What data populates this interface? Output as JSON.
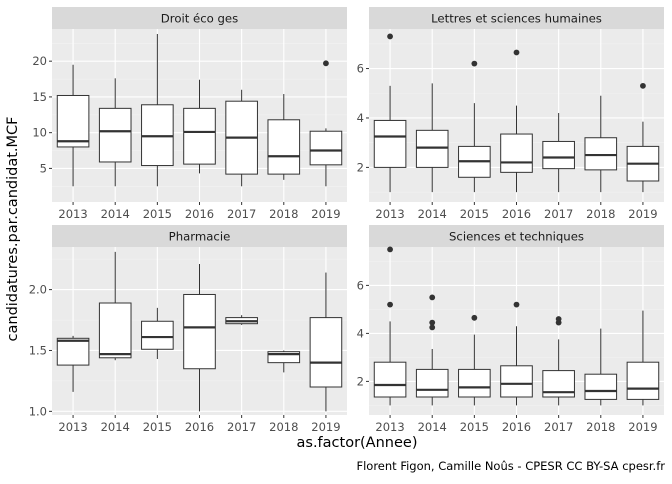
{
  "figure": {
    "ylabel": "candidatures.par.candidat.MCF",
    "xlabel": "as.factor(Annee)",
    "caption": "Florent Figon, Camille Noûs - CPESR CC BY-SA cpesr.fr"
  },
  "colors": {
    "panel_bg": "#ebebeb",
    "strip_bg": "#d9d9d9",
    "grid_major": "#ffffff",
    "grid_minor": "#f2f2f2",
    "box_fill": "#ffffff",
    "box_line": "#333333",
    "tick_text": "#4d4d4d",
    "strip_text": "#1a1a1a"
  },
  "chart_data": [
    {
      "type": "boxplot",
      "facet": "Droit éco ges",
      "categories": [
        "2013",
        "2014",
        "2015",
        "2016",
        "2017",
        "2018",
        "2019"
      ],
      "yticks": [
        5,
        10,
        15,
        20
      ],
      "ylim": [
        0.3,
        24.5
      ],
      "boxes": [
        {
          "min": 2.5,
          "q1": 8.0,
          "median": 8.8,
          "q3": 15.2,
          "max": 19.5,
          "outliers": []
        },
        {
          "min": 2.5,
          "q1": 5.9,
          "median": 10.2,
          "q3": 13.4,
          "max": 17.6,
          "outliers": []
        },
        {
          "min": 2.5,
          "q1": 5.4,
          "median": 9.5,
          "q3": 13.9,
          "max": 23.8,
          "outliers": []
        },
        {
          "min": 4.3,
          "q1": 5.6,
          "median": 10.1,
          "q3": 13.4,
          "max": 17.4,
          "outliers": []
        },
        {
          "min": 2.5,
          "q1": 4.2,
          "median": 9.3,
          "q3": 14.4,
          "max": 16.0,
          "outliers": []
        },
        {
          "min": 3.4,
          "q1": 4.2,
          "median": 6.7,
          "q3": 11.8,
          "max": 15.4,
          "outliers": []
        },
        {
          "min": 2.5,
          "q1": 5.5,
          "median": 7.5,
          "q3": 10.2,
          "max": 10.6,
          "outliers": [
            19.7
          ]
        }
      ]
    },
    {
      "type": "boxplot",
      "facet": "Lettres et sciences humaines",
      "categories": [
        "2013",
        "2014",
        "2015",
        "2016",
        "2017",
        "2018",
        "2019"
      ],
      "yticks": [
        2,
        4,
        6
      ],
      "ylim": [
        0.6,
        7.6
      ],
      "boxes": [
        {
          "min": 1.0,
          "q1": 2.0,
          "median": 3.25,
          "q3": 3.9,
          "max": 5.3,
          "outliers": [
            7.3
          ]
        },
        {
          "min": 1.0,
          "q1": 2.0,
          "median": 2.8,
          "q3": 3.5,
          "max": 5.4,
          "outliers": []
        },
        {
          "min": 1.0,
          "q1": 1.6,
          "median": 2.25,
          "q3": 2.85,
          "max": 4.6,
          "outliers": [
            6.2
          ]
        },
        {
          "min": 1.0,
          "q1": 1.8,
          "median": 2.2,
          "q3": 3.35,
          "max": 4.5,
          "outliers": [
            6.65
          ]
        },
        {
          "min": 1.0,
          "q1": 1.95,
          "median": 2.4,
          "q3": 3.05,
          "max": 4.2,
          "outliers": []
        },
        {
          "min": 1.0,
          "q1": 1.9,
          "median": 2.5,
          "q3": 3.2,
          "max": 4.9,
          "outliers": []
        },
        {
          "min": 1.0,
          "q1": 1.45,
          "median": 2.15,
          "q3": 2.85,
          "max": 3.85,
          "outliers": [
            5.3
          ]
        }
      ]
    },
    {
      "type": "boxplot",
      "facet": "Pharmacie",
      "categories": [
        "2013",
        "2014",
        "2015",
        "2016",
        "2017",
        "2018",
        "2019"
      ],
      "yticks": [
        1.0,
        1.5,
        2.0
      ],
      "ylim": [
        0.97,
        2.35
      ],
      "boxes": [
        {
          "min": 1.16,
          "q1": 1.38,
          "median": 1.58,
          "q3": 1.6,
          "max": 1.62,
          "outliers": []
        },
        {
          "min": 1.42,
          "q1": 1.44,
          "median": 1.47,
          "q3": 1.89,
          "max": 2.31,
          "outliers": []
        },
        {
          "min": 1.43,
          "q1": 1.51,
          "median": 1.61,
          "q3": 1.74,
          "max": 1.85,
          "outliers": []
        },
        {
          "min": 1.0,
          "q1": 1.35,
          "median": 1.69,
          "q3": 1.96,
          "max": 2.21,
          "outliers": []
        },
        {
          "min": 1.71,
          "q1": 1.72,
          "median": 1.74,
          "q3": 1.77,
          "max": 1.79,
          "outliers": []
        },
        {
          "min": 1.32,
          "q1": 1.4,
          "median": 1.47,
          "q3": 1.49,
          "max": 1.5,
          "outliers": []
        },
        {
          "min": 1.0,
          "q1": 1.2,
          "median": 1.4,
          "q3": 1.77,
          "max": 2.14,
          "outliers": []
        }
      ]
    },
    {
      "type": "boxplot",
      "facet": "Sciences et techniques",
      "categories": [
        "2013",
        "2014",
        "2015",
        "2016",
        "2017",
        "2018",
        "2019"
      ],
      "yticks": [
        2,
        4,
        6
      ],
      "ylim": [
        0.6,
        7.6
      ],
      "boxes": [
        {
          "min": 1.0,
          "q1": 1.35,
          "median": 1.85,
          "q3": 2.8,
          "max": 4.5,
          "outliers": [
            5.2,
            7.5
          ]
        },
        {
          "min": 1.0,
          "q1": 1.35,
          "median": 1.65,
          "q3": 2.5,
          "max": 3.35,
          "outliers": [
            4.25,
            4.45,
            5.5
          ]
        },
        {
          "min": 1.0,
          "q1": 1.35,
          "median": 1.75,
          "q3": 2.5,
          "max": 3.95,
          "outliers": [
            4.65
          ]
        },
        {
          "min": 1.0,
          "q1": 1.35,
          "median": 1.9,
          "q3": 2.65,
          "max": 4.3,
          "outliers": [
            5.2
          ]
        },
        {
          "min": 1.0,
          "q1": 1.35,
          "median": 1.55,
          "q3": 2.45,
          "max": 3.75,
          "outliers": [
            4.45,
            4.6
          ]
        },
        {
          "min": 1.0,
          "q1": 1.25,
          "median": 1.6,
          "q3": 2.3,
          "max": 4.2,
          "outliers": []
        },
        {
          "min": 1.0,
          "q1": 1.25,
          "median": 1.7,
          "q3": 2.8,
          "max": 4.95,
          "outliers": []
        }
      ]
    }
  ]
}
